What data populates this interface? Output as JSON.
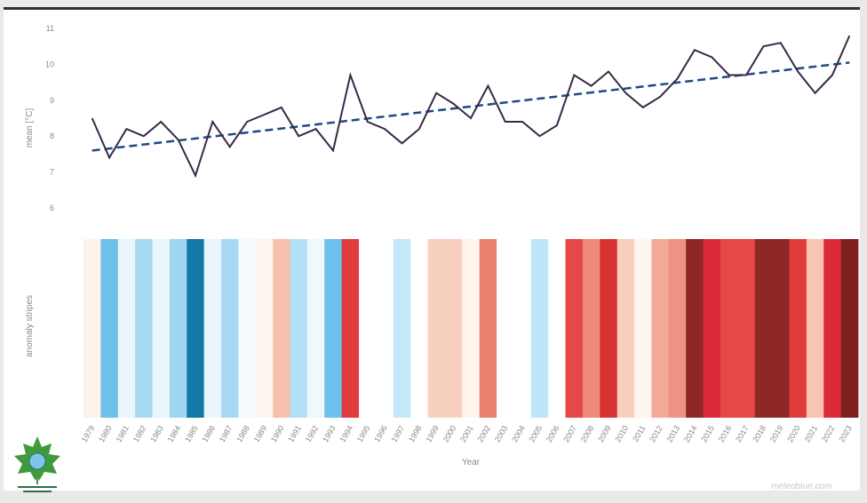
{
  "chart_data": {
    "type": "line",
    "ylabel": "mean [°C]",
    "xlabel": "Year",
    "stripes_label": "anomaly stripes",
    "ylim": [
      6,
      11
    ],
    "yticks": [
      6,
      7,
      8,
      9,
      10,
      11
    ],
    "x": [
      1979,
      1980,
      1981,
      1982,
      1983,
      1984,
      1985,
      1986,
      1987,
      1988,
      1989,
      1990,
      1991,
      1992,
      1993,
      1994,
      1995,
      1996,
      1997,
      1998,
      1999,
      2000,
      2001,
      2002,
      2003,
      2004,
      2005,
      2006,
      2007,
      2008,
      2009,
      2010,
      2011,
      2012,
      2013,
      2014,
      2015,
      2016,
      2017,
      2018,
      2019,
      2020,
      2021,
      2022,
      2023
    ],
    "series": [
      {
        "values": [
          8.5,
          7.4,
          8.2,
          8.0,
          8.4,
          7.9,
          6.9,
          8.4,
          7.7,
          8.4,
          8.6,
          8.8,
          8.0,
          8.2,
          7.6,
          9.7,
          8.4,
          8.2,
          7.8,
          8.2,
          9.2,
          8.9,
          8.5,
          9.4,
          8.4,
          8.4,
          8.0,
          8.3,
          9.7,
          9.4,
          9.8,
          9.2,
          8.8,
          9.1,
          9.6,
          10.4,
          10.2,
          9.7,
          9.7,
          10.5,
          10.6,
          9.8,
          9.2,
          9.7,
          10.8
        ]
      }
    ],
    "trend": {
      "start": 7.6,
      "end": 10.05
    },
    "stripe_colors": [
      "#fdf3ec",
      "#6cc0ea",
      "#eaf6fc",
      "#a6daf4",
      "#eaf6fc",
      "#9ed6f2",
      "#127aa4",
      "#eaf6fc",
      "#a6daf4",
      "#f4fafe",
      "#fdf5ee",
      "#f5c0ad",
      "#b4e0f6",
      "#eef8fd",
      "#6cc0ea",
      "#e03c3c",
      "#ffffff",
      "#ffffff",
      "#c5e8f8",
      "#ffffff",
      "#f8d0c0",
      "#f8d0c0",
      "#fff4ee",
      "#ec8070",
      "#ffffff",
      "#ffffff",
      "#bfe6f8",
      "#ffffff",
      "#e44848",
      "#f08a7c",
      "#d83232",
      "#f8d0c0",
      "#fff6f0",
      "#f4a898",
      "#ee9282",
      "#8e2626",
      "#dc2a3a",
      "#e44848",
      "#e44848",
      "#8e2626",
      "#8e2626",
      "#e03c3c",
      "#f8c4b4",
      "#dc2a3a",
      "#7e2020"
    ]
  },
  "credit": "meteoblue.com"
}
